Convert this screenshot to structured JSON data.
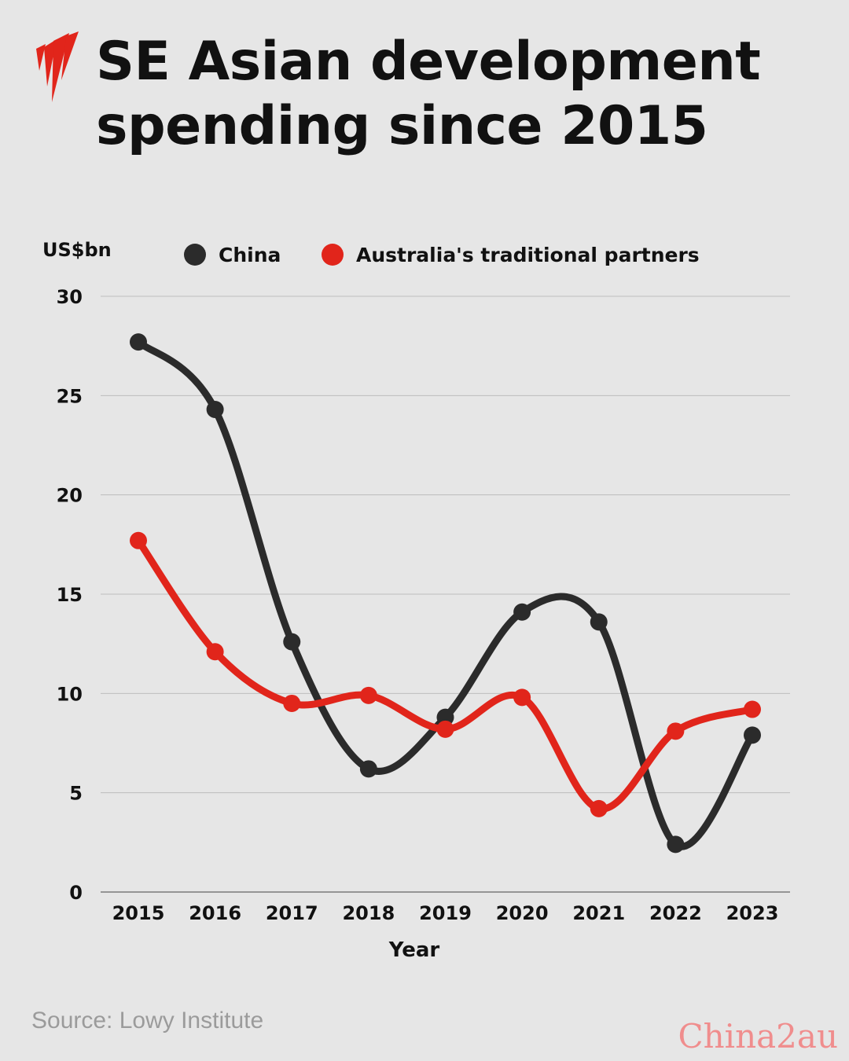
{
  "title": {
    "line1": "SE Asian development",
    "line2": "spending since 2015"
  },
  "logo": {
    "icon": "sbs-logo-icon",
    "color": "#e1251b"
  },
  "chart_data": {
    "type": "line",
    "title": "SE Asian development spending since 2015",
    "xlabel": "Year",
    "ylabel": "US$bn",
    "ylim": [
      0,
      30
    ],
    "yticks": [
      0,
      5,
      10,
      15,
      20,
      25,
      30
    ],
    "grid": true,
    "legend_position": "top",
    "categories": [
      "2015",
      "2016",
      "2017",
      "2018",
      "2019",
      "2020",
      "2021",
      "2022",
      "2023"
    ],
    "series": [
      {
        "name": "China",
        "color": "#2b2b2b",
        "values": [
          27.7,
          24.3,
          12.6,
          6.2,
          8.8,
          14.1,
          13.6,
          2.4,
          7.9
        ]
      },
      {
        "name": "Australia's traditional partners",
        "color": "#e1251b",
        "values": [
          17.7,
          12.1,
          9.5,
          9.9,
          8.2,
          9.8,
          4.2,
          8.1,
          9.2
        ]
      }
    ]
  },
  "source": "Source: Lowy Institute",
  "watermark": "China2au"
}
